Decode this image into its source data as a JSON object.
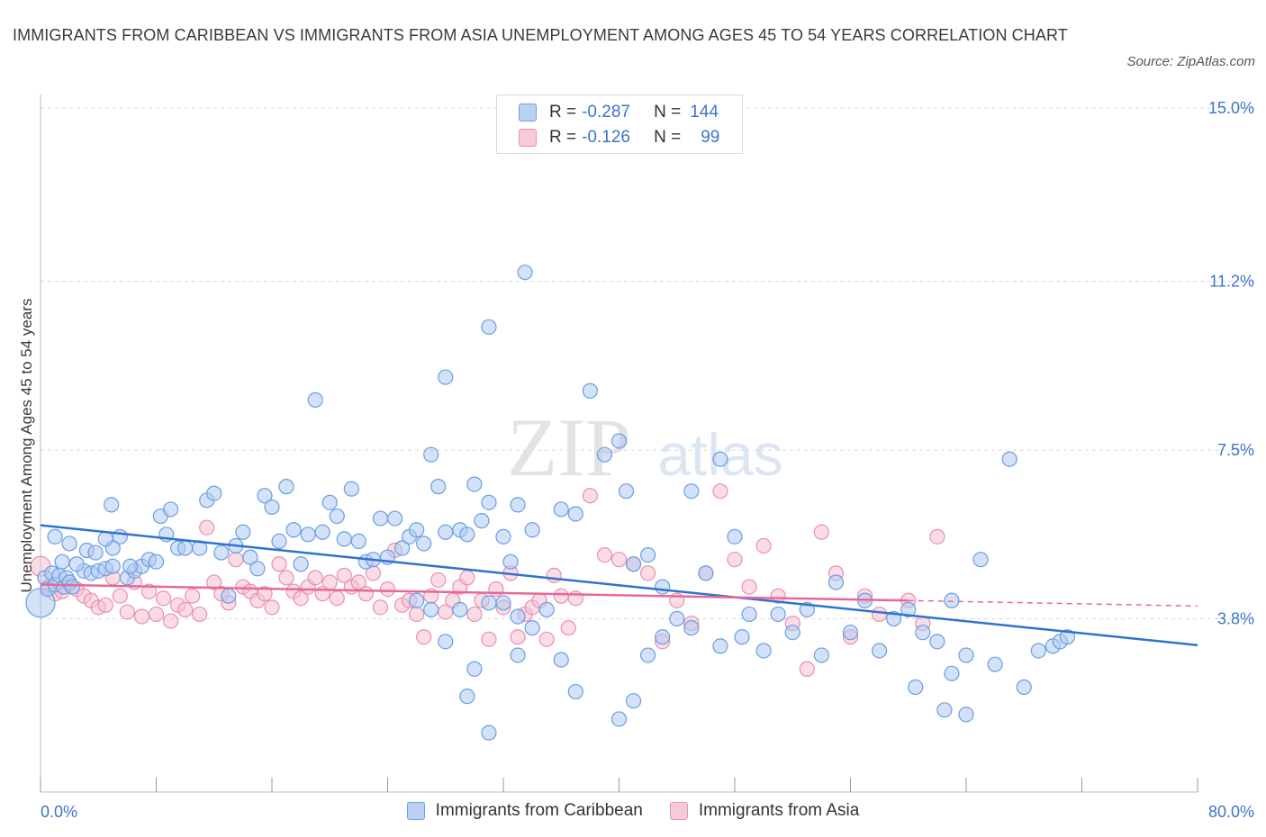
{
  "title": "IMMIGRANTS FROM CARIBBEAN VS IMMIGRANTS FROM ASIA UNEMPLOYMENT AMONG AGES 45 TO 54 YEARS CORRELATION CHART",
  "source": "Source: ZipAtlas.com",
  "watermark": {
    "zip": "ZIP",
    "atlas": "atlas"
  },
  "legend": {
    "rows": [
      {
        "r_label": "R =",
        "r_value": "-0.287",
        "n_label": "N =",
        "n_value": "144",
        "color": "#8fb6ec"
      },
      {
        "r_label": "R =",
        "r_value": "-0.126",
        "n_label": "N =",
        "n_value": "99",
        "color": "#f3a9c3"
      }
    ]
  },
  "bottom_legend": [
    "Immigrants from Caribbean",
    "Immigrants from Asia"
  ],
  "colors": {
    "caribbean_fill": "#aecbf2",
    "caribbean_stroke": "#6a9ee0",
    "caribbean_line": "#2f72d0",
    "asia_fill": "#f6c0d3",
    "asia_stroke": "#ea8fb0",
    "asia_line": "#e8679a",
    "axis_text": "#3b75c8",
    "grid": "#d8d8d8"
  },
  "chart_data": {
    "type": "scatter",
    "title": "IMMIGRANTS FROM CARIBBEAN VS IMMIGRANTS FROM ASIA UNEMPLOYMENT AMONG AGES 45 TO 54 YEARS CORRELATION CHART",
    "xlabel": "",
    "ylabel": "Unemployment Among Ages 45 to 54 years",
    "xlim": [
      0,
      80
    ],
    "ylim": [
      0,
      15.3
    ],
    "x_tick_labels": [
      "0.0%",
      "80.0%"
    ],
    "y_ticks": [
      3.8,
      7.5,
      11.2,
      15.0
    ],
    "y_tick_labels": [
      "3.8%",
      "7.5%",
      "11.2%",
      "15.0%"
    ],
    "grid": "horizontal dashed",
    "legend_position": "top-center",
    "series": [
      {
        "name": "Immigrants from Caribbean",
        "r": -0.287,
        "n": 144,
        "trend": {
          "x": [
            0,
            80
          ],
          "y": [
            5.85,
            3.22
          ]
        },
        "points": [
          [
            0,
            4.15
          ],
          [
            0.3,
            4.7
          ],
          [
            0.5,
            4.45
          ],
          [
            0.8,
            4.8
          ],
          [
            1,
            4.55
          ],
          [
            1.3,
            4.75
          ],
          [
            1.6,
            4.5
          ],
          [
            1.8,
            4.7
          ],
          [
            2,
            4.6
          ],
          [
            2.2,
            4.5
          ],
          [
            3,
            4.85
          ],
          [
            3.5,
            4.8
          ],
          [
            4,
            4.85
          ],
          [
            4.5,
            4.9
          ],
          [
            5,
            4.95
          ],
          [
            6,
            4.7
          ],
          [
            6.5,
            4.85
          ],
          [
            7,
            4.95
          ],
          [
            7.5,
            5.1
          ],
          [
            8,
            5.05
          ],
          [
            1,
            5.6
          ],
          [
            1.5,
            5.05
          ],
          [
            2,
            5.45
          ],
          [
            2.5,
            5.0
          ],
          [
            3.2,
            5.3
          ],
          [
            3.8,
            5.25
          ],
          [
            5.5,
            5.6
          ],
          [
            6.2,
            4.95
          ],
          [
            5,
            5.35
          ],
          [
            4.5,
            5.55
          ],
          [
            4.9,
            6.3
          ],
          [
            8.3,
            6.05
          ],
          [
            8.7,
            5.65
          ],
          [
            9,
            6.2
          ],
          [
            9.5,
            5.35
          ],
          [
            10,
            5.35
          ],
          [
            11,
            5.35
          ],
          [
            11.5,
            6.4
          ],
          [
            12,
            6.55
          ],
          [
            12.5,
            5.25
          ],
          [
            13,
            4.3
          ],
          [
            13.5,
            5.4
          ],
          [
            14,
            5.7
          ],
          [
            14.5,
            5.15
          ],
          [
            15,
            4.9
          ],
          [
            15.5,
            6.5
          ],
          [
            16,
            6.25
          ],
          [
            16.5,
            5.5
          ],
          [
            17,
            6.7
          ],
          [
            17.5,
            5.75
          ],
          [
            18,
            5.0
          ],
          [
            18.5,
            5.65
          ],
          [
            19,
            8.6
          ],
          [
            19.5,
            5.7
          ],
          [
            20,
            6.35
          ],
          [
            20.5,
            6.05
          ],
          [
            21,
            5.55
          ],
          [
            21.5,
            6.65
          ],
          [
            22,
            5.5
          ],
          [
            22.5,
            5.05
          ],
          [
            23,
            5.1
          ],
          [
            23.5,
            6.0
          ],
          [
            24,
            5.15
          ],
          [
            24.5,
            6.0
          ],
          [
            25,
            5.35
          ],
          [
            25.5,
            5.6
          ],
          [
            26,
            5.75
          ],
          [
            26.5,
            5.45
          ],
          [
            27,
            7.4
          ],
          [
            27.5,
            6.7
          ],
          [
            28,
            5.7
          ],
          [
            29,
            5.75
          ],
          [
            29.5,
            5.65
          ],
          [
            30,
            6.75
          ],
          [
            30.5,
            5.95
          ],
          [
            31,
            6.35
          ],
          [
            32,
            5.6
          ],
          [
            32.5,
            5.05
          ],
          [
            33,
            6.3
          ],
          [
            34,
            5.75
          ],
          [
            26,
            4.2
          ],
          [
            27,
            4.0
          ],
          [
            28,
            3.3
          ],
          [
            29,
            4.0
          ],
          [
            29.5,
            2.1
          ],
          [
            30,
            2.7
          ],
          [
            31,
            4.15
          ],
          [
            32,
            4.15
          ],
          [
            33,
            3.85
          ],
          [
            34,
            3.6
          ],
          [
            35,
            4.0
          ],
          [
            36,
            6.2
          ],
          [
            37,
            6.1
          ],
          [
            38,
            8.8
          ],
          [
            39,
            7.4
          ],
          [
            40,
            7.7
          ],
          [
            40.5,
            6.6
          ],
          [
            41,
            5.0
          ],
          [
            42,
            5.2
          ],
          [
            43,
            4.5
          ],
          [
            44,
            3.8
          ],
          [
            45,
            3.6
          ],
          [
            46,
            4.8
          ],
          [
            47,
            3.2
          ],
          [
            48,
            5.6
          ],
          [
            48.5,
            3.4
          ],
          [
            49,
            3.9
          ],
          [
            50,
            3.1
          ],
          [
            51,
            3.9
          ],
          [
            52,
            3.5
          ],
          [
            53,
            4.0
          ],
          [
            54,
            3.0
          ],
          [
            55,
            4.6
          ],
          [
            56,
            3.5
          ],
          [
            57,
            4.2
          ],
          [
            58,
            3.1
          ],
          [
            59,
            3.8
          ],
          [
            60,
            4.0
          ],
          [
            61,
            3.5
          ],
          [
            62,
            3.3
          ],
          [
            63,
            4.2
          ],
          [
            64,
            3.0
          ],
          [
            65,
            5.1
          ],
          [
            66,
            2.8
          ],
          [
            67,
            7.3
          ],
          [
            68,
            2.3
          ],
          [
            69,
            3.1
          ],
          [
            70,
            3.2
          ],
          [
            70.5,
            3.3
          ],
          [
            71,
            3.4
          ],
          [
            60.5,
            2.3
          ],
          [
            62.5,
            1.8
          ],
          [
            63,
            2.6
          ],
          [
            64,
            1.7
          ],
          [
            33.5,
            11.4
          ],
          [
            31,
            10.2
          ],
          [
            28,
            9.1
          ],
          [
            31,
            1.3
          ],
          [
            37,
            2.2
          ],
          [
            36,
            2.9
          ],
          [
            33,
            3.0
          ],
          [
            42,
            3.0
          ],
          [
            43,
            3.4
          ],
          [
            40,
            1.6
          ],
          [
            41,
            2.0
          ],
          [
            45,
            6.6
          ],
          [
            47,
            7.3
          ]
        ]
      },
      {
        "name": "Immigrants from Asia",
        "r": -0.126,
        "n": 99,
        "trend": {
          "x": [
            0,
            60
          ],
          "y": [
            4.55,
            4.2
          ]
        },
        "trend_dashed": {
          "x": [
            60,
            80
          ],
          "y": [
            4.2,
            4.08
          ]
        },
        "points": [
          [
            0,
            4.95
          ],
          [
            0.5,
            4.5
          ],
          [
            1,
            4.35
          ],
          [
            1.5,
            4.4
          ],
          [
            2,
            4.55
          ],
          [
            2.5,
            4.45
          ],
          [
            3,
            4.3
          ],
          [
            3.5,
            4.2
          ],
          [
            4,
            4.05
          ],
          [
            4.5,
            4.1
          ],
          [
            5,
            4.7
          ],
          [
            5.5,
            4.3
          ],
          [
            6,
            3.95
          ],
          [
            6.5,
            4.6
          ],
          [
            7,
            3.85
          ],
          [
            7.5,
            4.4
          ],
          [
            8,
            3.9
          ],
          [
            8.5,
            4.25
          ],
          [
            9,
            3.75
          ],
          [
            9.5,
            4.1
          ],
          [
            10,
            4.0
          ],
          [
            10.5,
            4.3
          ],
          [
            11,
            3.9
          ],
          [
            11.5,
            5.8
          ],
          [
            12,
            4.6
          ],
          [
            12.5,
            4.35
          ],
          [
            13,
            4.15
          ],
          [
            13.5,
            5.1
          ],
          [
            14,
            4.5
          ],
          [
            14.5,
            4.4
          ],
          [
            15,
            4.2
          ],
          [
            15.5,
            4.35
          ],
          [
            16,
            4.05
          ],
          [
            16.5,
            5.0
          ],
          [
            17,
            4.7
          ],
          [
            17.5,
            4.4
          ],
          [
            18,
            4.25
          ],
          [
            18.5,
            4.5
          ],
          [
            19,
            4.7
          ],
          [
            19.5,
            4.35
          ],
          [
            20,
            4.6
          ],
          [
            20.5,
            4.25
          ],
          [
            21,
            4.75
          ],
          [
            21.5,
            4.5
          ],
          [
            22,
            4.6
          ],
          [
            22.5,
            4.35
          ],
          [
            23,
            4.8
          ],
          [
            23.5,
            4.05
          ],
          [
            24,
            4.45
          ],
          [
            24.5,
            5.3
          ],
          [
            25,
            4.1
          ],
          [
            25.5,
            4.2
          ],
          [
            26,
            3.9
          ],
          [
            26.5,
            3.4
          ],
          [
            27,
            4.3
          ],
          [
            27.5,
            4.65
          ],
          [
            28,
            3.95
          ],
          [
            28.5,
            4.2
          ],
          [
            29,
            4.5
          ],
          [
            29.5,
            4.7
          ],
          [
            30,
            3.9
          ],
          [
            30.5,
            4.2
          ],
          [
            31,
            3.35
          ],
          [
            31.5,
            4.45
          ],
          [
            32,
            4.05
          ],
          [
            32.5,
            4.8
          ],
          [
            33,
            3.4
          ],
          [
            33.5,
            3.9
          ],
          [
            34,
            4.05
          ],
          [
            34.5,
            4.2
          ],
          [
            35,
            3.35
          ],
          [
            35.5,
            4.75
          ],
          [
            36,
            4.3
          ],
          [
            36.5,
            3.6
          ],
          [
            37,
            4.25
          ],
          [
            38,
            6.5
          ],
          [
            39,
            5.2
          ],
          [
            40,
            5.1
          ],
          [
            41,
            5.0
          ],
          [
            42,
            4.8
          ],
          [
            43,
            3.3
          ],
          [
            44,
            4.2
          ],
          [
            45,
            3.7
          ],
          [
            46,
            4.8
          ],
          [
            47,
            6.6
          ],
          [
            48,
            5.1
          ],
          [
            49,
            4.5
          ],
          [
            50,
            5.4
          ],
          [
            51,
            4.3
          ],
          [
            52,
            3.7
          ],
          [
            53,
            2.7
          ],
          [
            54,
            5.7
          ],
          [
            55,
            4.8
          ],
          [
            56,
            3.4
          ],
          [
            57,
            4.3
          ],
          [
            58,
            3.9
          ],
          [
            60,
            4.2
          ],
          [
            61,
            3.7
          ],
          [
            62,
            5.6
          ]
        ]
      }
    ]
  }
}
